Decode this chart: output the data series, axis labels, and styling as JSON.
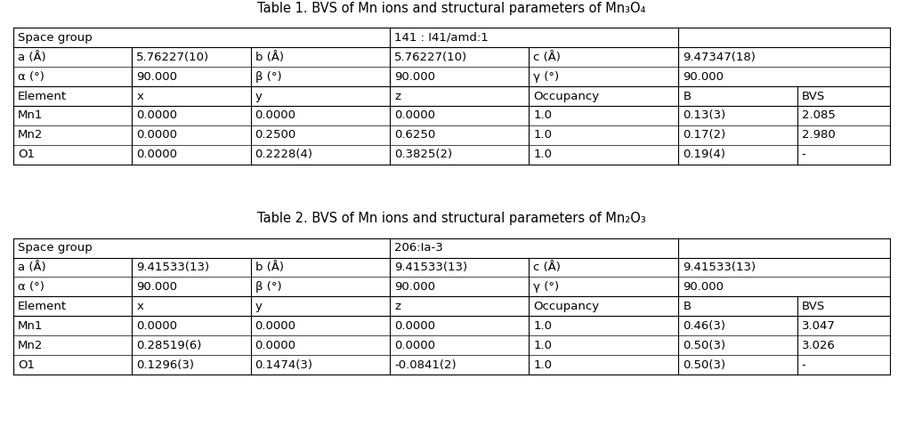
{
  "table1": {
    "title": "Table 1. BVS of Mn ions and structural parameters of Mn₃O₄",
    "space_group_label": "Space group",
    "space_group_value": "141 : I41/amd:1",
    "lattice_params": [
      [
        "a (Å)",
        "5.76227(10)",
        "b (Å)",
        "5.76227(10)",
        "c (Å)",
        "9.47347(18)"
      ],
      [
        "α (°)",
        "90.000",
        "β (°)",
        "90.000",
        "γ (°)",
        "90.000"
      ]
    ],
    "headers": [
      "Element",
      "x",
      "y",
      "z",
      "Occupancy",
      "B",
      "BVS"
    ],
    "rows": [
      [
        "Mn1",
        "0.0000",
        "0.0000",
        "0.0000",
        "1.0",
        "0.13(3)",
        "2.085"
      ],
      [
        "Mn2",
        "0.0000",
        "0.2500",
        "0.6250",
        "1.0",
        "0.17(2)",
        "2.980"
      ],
      [
        "O1",
        "0.0000",
        "0.2228(4)",
        "0.3825(2)",
        "1.0",
        "0.19(4)",
        "-"
      ]
    ]
  },
  "table2": {
    "title": "Table 2. BVS of Mn ions and structural parameters of Mn₂O₃",
    "space_group_label": "Space group",
    "space_group_value": "206:Ia-3",
    "lattice_params": [
      [
        "a (Å)",
        "9.41533(13)",
        "b (Å)",
        "9.41533(13)",
        "c (Å)",
        "9.41533(13)"
      ],
      [
        "α (°)",
        "90.000",
        "β (°)",
        "90.000",
        "γ (°)",
        "90.000"
      ]
    ],
    "headers": [
      "Element",
      "x",
      "y",
      "z",
      "Occupancy",
      "B",
      "BVS"
    ],
    "rows": [
      [
        "Mn1",
        "0.0000",
        "0.0000",
        "0.0000",
        "1.0",
        "0.46(3)",
        "3.047"
      ],
      [
        "Mn2",
        "0.28519(6)",
        "0.0000",
        "0.0000",
        "1.0",
        "0.50(3)",
        "3.026"
      ],
      [
        "O1",
        "0.1296(3)",
        "0.1474(3)",
        "-0.0841(2)",
        "1.0",
        "0.50(3)",
        "-"
      ]
    ]
  },
  "bg_color": "#ffffff",
  "line_color": "#000000",
  "font_size": 9.5,
  "title_font_size": 10.5
}
